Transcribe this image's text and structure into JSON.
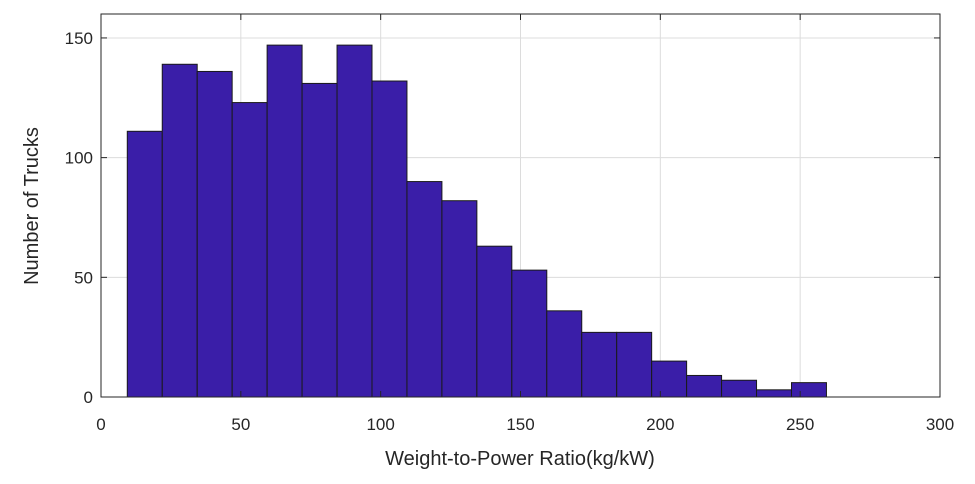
{
  "chart_data": {
    "type": "bar",
    "xlabel": "Weight-to-Power Ratio(kg/kW)",
    "ylabel": "Number of Trucks",
    "xlim": [
      0,
      300
    ],
    "ylim": [
      0,
      160
    ],
    "xticks": [
      0,
      50,
      100,
      150,
      200,
      250,
      300
    ],
    "yticks": [
      0,
      50,
      100,
      150
    ],
    "grid": true,
    "bar_color": "#3a1ea8",
    "bins": [
      {
        "x0": 9.4,
        "x1": 21.9,
        "value": 111
      },
      {
        "x0": 21.9,
        "x1": 34.4,
        "value": 139
      },
      {
        "x0": 34.4,
        "x1": 46.9,
        "value": 136
      },
      {
        "x0": 46.9,
        "x1": 59.4,
        "value": 123
      },
      {
        "x0": 59.4,
        "x1": 71.9,
        "value": 147
      },
      {
        "x0": 71.9,
        "x1": 84.4,
        "value": 131
      },
      {
        "x0": 84.4,
        "x1": 96.9,
        "value": 147
      },
      {
        "x0": 96.9,
        "x1": 109.4,
        "value": 132
      },
      {
        "x0": 109.4,
        "x1": 121.9,
        "value": 90
      },
      {
        "x0": 121.9,
        "x1": 134.4,
        "value": 82
      },
      {
        "x0": 134.4,
        "x1": 146.9,
        "value": 63
      },
      {
        "x0": 146.9,
        "x1": 159.4,
        "value": 53
      },
      {
        "x0": 159.4,
        "x1": 171.9,
        "value": 36
      },
      {
        "x0": 171.9,
        "x1": 184.4,
        "value": 27
      },
      {
        "x0": 184.4,
        "x1": 196.9,
        "value": 27
      },
      {
        "x0": 196.9,
        "x1": 209.4,
        "value": 15
      },
      {
        "x0": 209.4,
        "x1": 221.9,
        "value": 9
      },
      {
        "x0": 221.9,
        "x1": 234.4,
        "value": 7
      },
      {
        "x0": 234.4,
        "x1": 246.9,
        "value": 3
      },
      {
        "x0": 246.9,
        "x1": 259.4,
        "value": 6
      }
    ]
  }
}
